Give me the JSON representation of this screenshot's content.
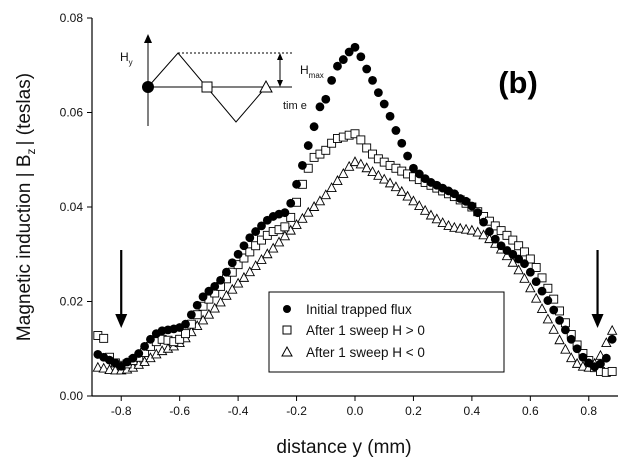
{
  "chart_data": {
    "type": "scatter",
    "panel_label": "(b)",
    "xlabel": "distance y (mm)",
    "ylabel": {
      "main": "Magnetic induction | B",
      "sub": "z",
      "rest": "|  (teslas)"
    },
    "xlim": [
      -0.9,
      0.9
    ],
    "ylim": [
      0.0,
      0.08
    ],
    "x_ticks": [
      "-0.8",
      "-0.6",
      "-0.4",
      "-0.2",
      "0.0",
      "0.2",
      "0.4",
      "0.6",
      "0.8"
    ],
    "y_ticks": [
      "0.00",
      "0.02",
      "0.04",
      "0.06",
      "0.08"
    ],
    "arrows_at_x": [
      -0.8,
      0.83
    ],
    "inset": {
      "h_label": "H",
      "h_sub": "y",
      "hmax_label": "H",
      "hmax_sub": "max",
      "time_label": "tim e"
    },
    "series": [
      {
        "name": "Initial trapped flux",
        "marker": "filled-circle",
        "x": [
          -0.88,
          -0.86,
          -0.84,
          -0.82,
          -0.8,
          -0.78,
          -0.76,
          -0.74,
          -0.72,
          -0.7,
          -0.68,
          -0.66,
          -0.64,
          -0.62,
          -0.6,
          -0.58,
          -0.56,
          -0.54,
          -0.52,
          -0.5,
          -0.48,
          -0.46,
          -0.44,
          -0.42,
          -0.4,
          -0.38,
          -0.36,
          -0.34,
          -0.32,
          -0.3,
          -0.28,
          -0.26,
          -0.24,
          -0.22,
          -0.2,
          -0.18,
          -0.16,
          -0.14,
          -0.12,
          -0.1,
          -0.08,
          -0.06,
          -0.04,
          -0.02,
          0.0,
          0.02,
          0.04,
          0.06,
          0.08,
          0.1,
          0.12,
          0.14,
          0.16,
          0.18,
          0.2,
          0.22,
          0.24,
          0.26,
          0.28,
          0.3,
          0.32,
          0.34,
          0.36,
          0.38,
          0.4,
          0.42,
          0.44,
          0.46,
          0.48,
          0.5,
          0.52,
          0.54,
          0.56,
          0.58,
          0.6,
          0.62,
          0.64,
          0.66,
          0.68,
          0.7,
          0.72,
          0.74,
          0.76,
          0.78,
          0.8,
          0.82,
          0.84,
          0.86,
          0.88
        ],
        "y": [
          0.0088,
          0.0082,
          0.0076,
          0.007,
          0.0063,
          0.0072,
          0.008,
          0.009,
          0.0105,
          0.012,
          0.0132,
          0.0138,
          0.014,
          0.0142,
          0.0145,
          0.0152,
          0.0172,
          0.0192,
          0.021,
          0.0222,
          0.0232,
          0.0245,
          0.0262,
          0.0282,
          0.03,
          0.0318,
          0.0335,
          0.0348,
          0.036,
          0.0372,
          0.038,
          0.0385,
          0.0388,
          0.0408,
          0.0448,
          0.0488,
          0.053,
          0.057,
          0.0612,
          0.0628,
          0.0668,
          0.0698,
          0.0712,
          0.0728,
          0.0738,
          0.0718,
          0.0692,
          0.0668,
          0.0642,
          0.0618,
          0.0592,
          0.0562,
          0.0535,
          0.0508,
          0.0482,
          0.047,
          0.046,
          0.0452,
          0.0446,
          0.044,
          0.0434,
          0.0428,
          0.0418,
          0.0412,
          0.0402,
          0.0388,
          0.0368,
          0.0348,
          0.0332,
          0.0318,
          0.0308,
          0.03,
          0.029,
          0.028,
          0.0262,
          0.0242,
          0.0222,
          0.0202,
          0.0182,
          0.016,
          0.014,
          0.012,
          0.01,
          0.0082,
          0.007,
          0.0062,
          0.0068,
          0.008,
          0.012
        ]
      },
      {
        "name": "After 1 sweep H > 0",
        "marker": "open-square",
        "x": [
          -0.88,
          -0.86,
          -0.84,
          -0.82,
          -0.8,
          -0.78,
          -0.76,
          -0.74,
          -0.72,
          -0.7,
          -0.68,
          -0.66,
          -0.64,
          -0.62,
          -0.6,
          -0.58,
          -0.56,
          -0.54,
          -0.52,
          -0.5,
          -0.48,
          -0.46,
          -0.44,
          -0.42,
          -0.4,
          -0.38,
          -0.36,
          -0.34,
          -0.32,
          -0.3,
          -0.28,
          -0.26,
          -0.24,
          -0.22,
          -0.2,
          -0.18,
          -0.16,
          -0.14,
          -0.12,
          -0.1,
          -0.08,
          -0.06,
          -0.04,
          -0.02,
          0.0,
          0.02,
          0.04,
          0.06,
          0.08,
          0.1,
          0.12,
          0.14,
          0.16,
          0.18,
          0.2,
          0.22,
          0.24,
          0.26,
          0.28,
          0.3,
          0.32,
          0.34,
          0.36,
          0.38,
          0.4,
          0.42,
          0.44,
          0.46,
          0.48,
          0.5,
          0.52,
          0.54,
          0.56,
          0.58,
          0.6,
          0.62,
          0.64,
          0.66,
          0.68,
          0.7,
          0.72,
          0.74,
          0.76,
          0.78,
          0.8,
          0.82,
          0.84,
          0.86,
          0.88
        ],
        "y": [
          0.0128,
          0.0122,
          0.0082,
          0.007,
          0.0065,
          0.0068,
          0.0075,
          0.0082,
          0.0092,
          0.0105,
          0.0115,
          0.012,
          0.0118,
          0.0115,
          0.012,
          0.0132,
          0.0152,
          0.0172,
          0.019,
          0.0205,
          0.0218,
          0.0232,
          0.0248,
          0.0262,
          0.0278,
          0.0292,
          0.0305,
          0.0318,
          0.033,
          0.034,
          0.0348,
          0.0352,
          0.0358,
          0.0378,
          0.041,
          0.0448,
          0.0482,
          0.0505,
          0.0512,
          0.052,
          0.0535,
          0.0545,
          0.0548,
          0.0552,
          0.0555,
          0.0542,
          0.0525,
          0.0512,
          0.0502,
          0.0495,
          0.0488,
          0.0482,
          0.0476,
          0.047,
          0.0464,
          0.0458,
          0.0452,
          0.0446,
          0.044,
          0.0434,
          0.0428,
          0.0422,
          0.0415,
          0.0408,
          0.04,
          0.039,
          0.038,
          0.037,
          0.036,
          0.035,
          0.034,
          0.033,
          0.0318,
          0.0305,
          0.029,
          0.0272,
          0.025,
          0.0228,
          0.0205,
          0.018,
          0.0155,
          0.013,
          0.0108,
          0.009,
          0.0075,
          0.006,
          0.0052,
          0.005,
          0.0052
        ]
      },
      {
        "name": "After 1 sweep H < 0",
        "marker": "open-triangle",
        "x": [
          -0.88,
          -0.86,
          -0.84,
          -0.82,
          -0.8,
          -0.78,
          -0.76,
          -0.74,
          -0.72,
          -0.7,
          -0.68,
          -0.66,
          -0.64,
          -0.62,
          -0.6,
          -0.58,
          -0.56,
          -0.54,
          -0.52,
          -0.5,
          -0.48,
          -0.46,
          -0.44,
          -0.42,
          -0.4,
          -0.38,
          -0.36,
          -0.34,
          -0.32,
          -0.3,
          -0.28,
          -0.26,
          -0.24,
          -0.22,
          -0.2,
          -0.18,
          -0.16,
          -0.14,
          -0.12,
          -0.1,
          -0.08,
          -0.06,
          -0.04,
          -0.02,
          0.0,
          0.02,
          0.04,
          0.06,
          0.08,
          0.1,
          0.12,
          0.14,
          0.16,
          0.18,
          0.2,
          0.22,
          0.24,
          0.26,
          0.28,
          0.3,
          0.32,
          0.34,
          0.36,
          0.38,
          0.4,
          0.42,
          0.44,
          0.46,
          0.48,
          0.5,
          0.52,
          0.54,
          0.56,
          0.58,
          0.6,
          0.62,
          0.64,
          0.66,
          0.68,
          0.7,
          0.72,
          0.74,
          0.76,
          0.78,
          0.8,
          0.82,
          0.84,
          0.86,
          0.88
        ],
        "y": [
          0.006,
          0.0058,
          0.0055,
          0.0054,
          0.0054,
          0.0056,
          0.006,
          0.0066,
          0.0072,
          0.008,
          0.0088,
          0.0095,
          0.01,
          0.0105,
          0.0112,
          0.0122,
          0.0135,
          0.0148,
          0.016,
          0.0172,
          0.0185,
          0.0198,
          0.0212,
          0.0225,
          0.0238,
          0.025,
          0.0262,
          0.0275,
          0.0288,
          0.03,
          0.0312,
          0.0325,
          0.0338,
          0.035,
          0.0362,
          0.0375,
          0.0388,
          0.04,
          0.0412,
          0.0425,
          0.044,
          0.0455,
          0.047,
          0.0485,
          0.0495,
          0.049,
          0.0482,
          0.0474,
          0.0466,
          0.0458,
          0.045,
          0.0442,
          0.0432,
          0.0422,
          0.0412,
          0.0402,
          0.0392,
          0.0382,
          0.0374,
          0.0366,
          0.036,
          0.0356,
          0.0354,
          0.0352,
          0.035,
          0.0346,
          0.034,
          0.0332,
          0.0322,
          0.031,
          0.0296,
          0.0282,
          0.0266,
          0.0248,
          0.0228,
          0.0206,
          0.0184,
          0.0162,
          0.014,
          0.0118,
          0.0098,
          0.008,
          0.0068,
          0.0062,
          0.006,
          0.0068,
          0.0085,
          0.0112,
          0.0138
        ]
      }
    ]
  }
}
